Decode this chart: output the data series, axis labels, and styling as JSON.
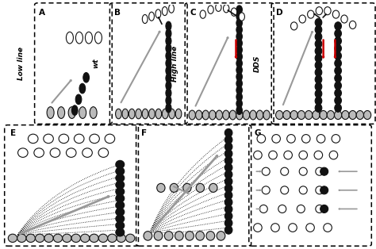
{
  "figure_width": 4.74,
  "figure_height": 3.14,
  "bg_color": "#ffffff",
  "filled_color": "#111111",
  "gray_fill": "#bbbbbb",
  "arrow_gray": "#999999",
  "red_color": "#cc0000",
  "black_color": "#111111",
  "panels": {
    "A": [
      0.1,
      0.51,
      0.19,
      0.47
    ],
    "B": [
      0.3,
      0.51,
      0.19,
      0.47
    ],
    "C": [
      0.5,
      0.51,
      0.22,
      0.47
    ],
    "D": [
      0.73,
      0.51,
      0.26,
      0.47
    ],
    "E": [
      0.02,
      0.02,
      0.34,
      0.47
    ],
    "F": [
      0.37,
      0.02,
      0.29,
      0.47
    ],
    "G": [
      0.67,
      0.02,
      0.31,
      0.47
    ]
  }
}
